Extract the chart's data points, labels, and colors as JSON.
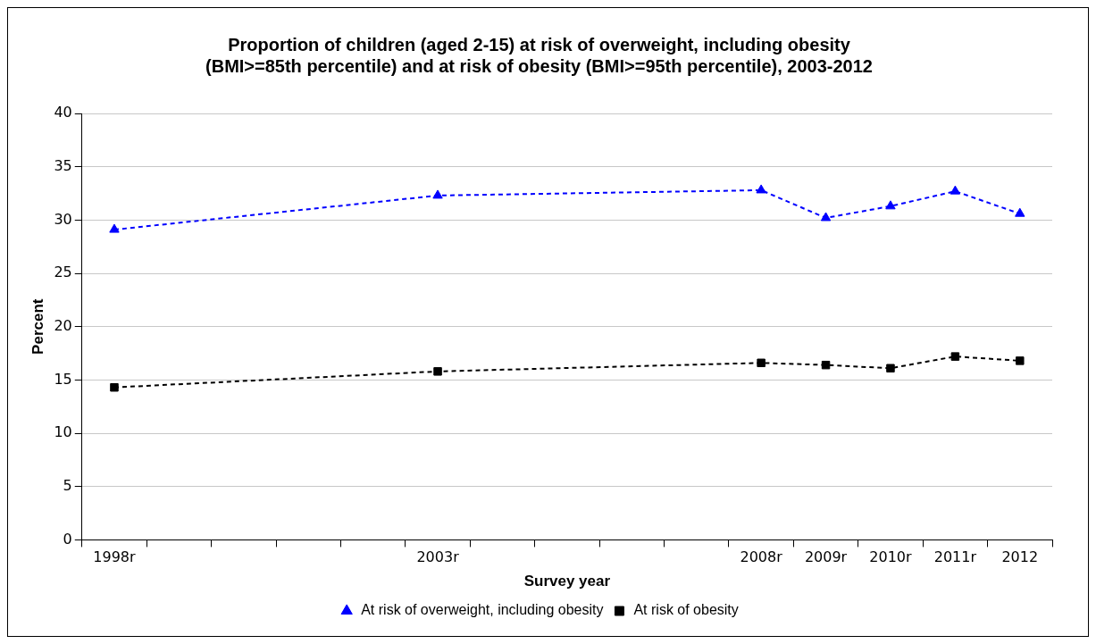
{
  "chart_data": {
    "type": "line",
    "title": "Proportion of children (aged 2-15) at risk of overweight, including obesity (BMI>=85th percentile) and at risk of obesity (BMI>=95th percentile), 2003-2012",
    "xlabel": "Survey year",
    "ylabel": "Percent",
    "categories": [
      "1998r",
      null,
      null,
      null,
      null,
      "2003r",
      null,
      null,
      null,
      null,
      "2008r",
      "2009r",
      "2010r",
      "2011r",
      "2012"
    ],
    "series": [
      {
        "name": "At risk of overweight, including obesity",
        "color": "#0000ff",
        "marker": "triangle",
        "values": [
          29.1,
          null,
          null,
          null,
          null,
          32.3,
          null,
          null,
          null,
          null,
          32.8,
          30.2,
          31.3,
          32.7,
          30.6
        ]
      },
      {
        "name": "At risk of obesity",
        "color": "#000000",
        "marker": "square",
        "values": [
          14.3,
          null,
          null,
          null,
          null,
          15.8,
          null,
          null,
          null,
          null,
          16.6,
          16.4,
          16.1,
          17.2,
          16.8
        ]
      }
    ],
    "ylim": [
      0,
      40
    ],
    "yticks": [
      0,
      5,
      10,
      15,
      20,
      25,
      30,
      35,
      40
    ],
    "grid": "y",
    "legend": "bottom",
    "line_style": "dashed"
  }
}
